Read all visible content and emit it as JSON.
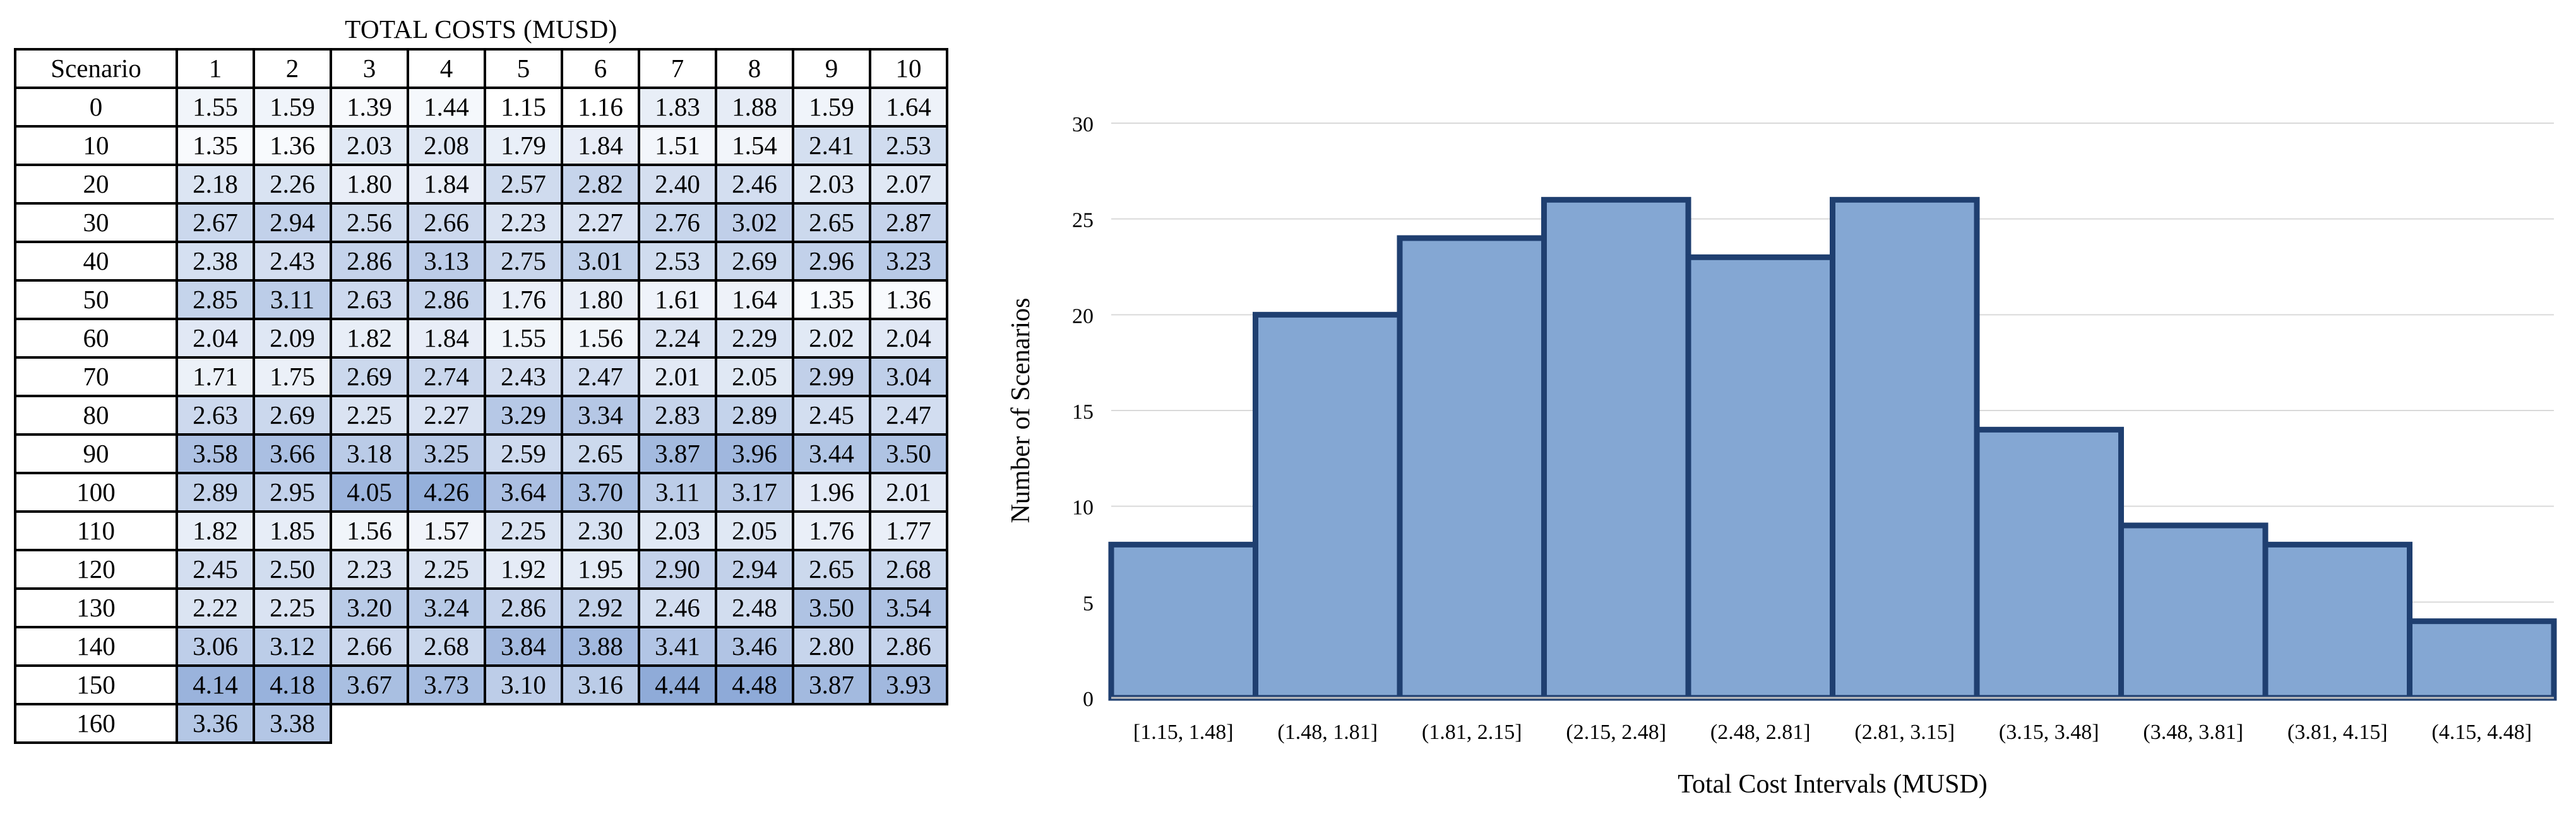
{
  "table": {
    "title": "TOTAL COSTS (MUSD)",
    "corner": "Scenario",
    "columns": [
      "1",
      "2",
      "3",
      "4",
      "5",
      "6",
      "7",
      "8",
      "9",
      "10"
    ],
    "rows": [
      {
        "scenario": "0",
        "values": [
          "1.55",
          "1.59",
          "1.39",
          "1.44",
          "1.15",
          "1.16",
          "1.83",
          "1.88",
          "1.59",
          "1.64"
        ]
      },
      {
        "scenario": "10",
        "values": [
          "1.35",
          "1.36",
          "2.03",
          "2.08",
          "1.79",
          "1.84",
          "1.51",
          "1.54",
          "2.41",
          "2.53"
        ]
      },
      {
        "scenario": "20",
        "values": [
          "2.18",
          "2.26",
          "1.80",
          "1.84",
          "2.57",
          "2.82",
          "2.40",
          "2.46",
          "2.03",
          "2.07"
        ]
      },
      {
        "scenario": "30",
        "values": [
          "2.67",
          "2.94",
          "2.56",
          "2.66",
          "2.23",
          "2.27",
          "2.76",
          "3.02",
          "2.65",
          "2.87"
        ]
      },
      {
        "scenario": "40",
        "values": [
          "2.38",
          "2.43",
          "2.86",
          "3.13",
          "2.75",
          "3.01",
          "2.53",
          "2.69",
          "2.96",
          "3.23"
        ]
      },
      {
        "scenario": "50",
        "values": [
          "2.85",
          "3.11",
          "2.63",
          "2.86",
          "1.76",
          "1.80",
          "1.61",
          "1.64",
          "1.35",
          "1.36"
        ]
      },
      {
        "scenario": "60",
        "values": [
          "2.04",
          "2.09",
          "1.82",
          "1.84",
          "1.55",
          "1.56",
          "2.24",
          "2.29",
          "2.02",
          "2.04"
        ]
      },
      {
        "scenario": "70",
        "values": [
          "1.71",
          "1.75",
          "2.69",
          "2.74",
          "2.43",
          "2.47",
          "2.01",
          "2.05",
          "2.99",
          "3.04"
        ]
      },
      {
        "scenario": "80",
        "values": [
          "2.63",
          "2.69",
          "2.25",
          "2.27",
          "3.29",
          "3.34",
          "2.83",
          "2.89",
          "2.45",
          "2.47"
        ]
      },
      {
        "scenario": "90",
        "values": [
          "3.58",
          "3.66",
          "3.18",
          "3.25",
          "2.59",
          "2.65",
          "3.87",
          "3.96",
          "3.44",
          "3.50"
        ]
      },
      {
        "scenario": "100",
        "values": [
          "2.89",
          "2.95",
          "4.05",
          "4.26",
          "3.64",
          "3.70",
          "3.11",
          "3.17",
          "1.96",
          "2.01"
        ]
      },
      {
        "scenario": "110",
        "values": [
          "1.82",
          "1.85",
          "1.56",
          "1.57",
          "2.25",
          "2.30",
          "2.03",
          "2.05",
          "1.76",
          "1.77"
        ]
      },
      {
        "scenario": "120",
        "values": [
          "2.45",
          "2.50",
          "2.23",
          "2.25",
          "1.92",
          "1.95",
          "2.90",
          "2.94",
          "2.65",
          "2.68"
        ]
      },
      {
        "scenario": "130",
        "values": [
          "2.22",
          "2.25",
          "3.20",
          "3.24",
          "2.86",
          "2.92",
          "2.46",
          "2.48",
          "3.50",
          "3.54"
        ]
      },
      {
        "scenario": "140",
        "values": [
          "3.06",
          "3.12",
          "2.66",
          "2.68",
          "3.84",
          "3.88",
          "3.41",
          "3.46",
          "2.80",
          "2.86"
        ]
      },
      {
        "scenario": "150",
        "values": [
          "4.14",
          "4.18",
          "3.67",
          "3.73",
          "3.10",
          "3.16",
          "4.44",
          "4.48",
          "3.87",
          "3.93"
        ]
      },
      {
        "scenario": "160",
        "values": [
          "3.36",
          "3.38"
        ]
      }
    ],
    "heat_scale": {
      "min": 1.15,
      "max": 4.48,
      "low_color": "#ffffff",
      "high_color": "#8eaad8"
    }
  },
  "chart_data": {
    "type": "bar",
    "categories": [
      "[1.15, 1.48]",
      "(1.48, 1.81]",
      "(1.81, 2.15]",
      "(2.15, 2.48]",
      "(2.48, 2.81]",
      "(2.81, 3.15]",
      "(3.15, 3.48]",
      "(3.48, 3.81]",
      "(3.81, 4.15]",
      "(4.15, 4.48]"
    ],
    "values": [
      8,
      20,
      24,
      26,
      23,
      26,
      14,
      9,
      8,
      4
    ],
    "xlabel": "Total Cost Intervals (MUSD)",
    "ylabel": "Number of Scenarios",
    "ylim": [
      0,
      30
    ],
    "yticks": [
      "0",
      "5",
      "10",
      "15",
      "20",
      "25",
      "30"
    ],
    "grid": true,
    "bar_fill": "#84a7d3",
    "bar_stroke": "#1f3f70"
  }
}
